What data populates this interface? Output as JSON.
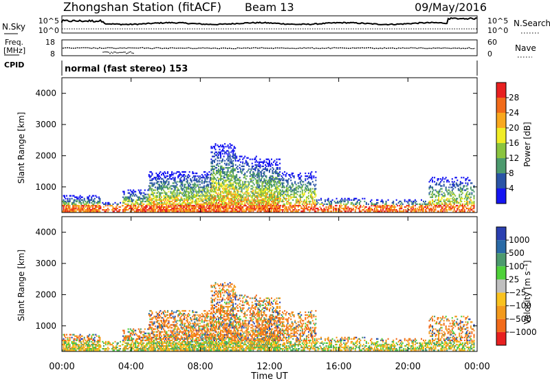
{
  "header": {
    "title": "Zhongshan Station (fitACF)",
    "beam": "Beam 13",
    "date": "09/May/2016"
  },
  "noise_panel": {
    "left_label": "N.Sky",
    "left_ticks": [
      "10^5",
      "10^0"
    ],
    "right_label": "N.Search",
    "right_ticks": [
      "10^5",
      "10^0"
    ]
  },
  "freq_panel": {
    "left_label_1": "Freq.",
    "left_label_2": "[MHz]",
    "left_ticks": [
      "18",
      "8"
    ],
    "right_label": "Nave",
    "right_ticks": [
      "60",
      "0"
    ]
  },
  "cpid": {
    "label": "CPID",
    "value": "normal (fast stereo) 153"
  },
  "xaxis": {
    "label": "Time UT",
    "ticks": [
      "00:00",
      "04:00",
      "08:00",
      "12:00",
      "16:00",
      "20:00",
      "00:00"
    ]
  },
  "chart_data": [
    {
      "type": "heatmap",
      "name": "power",
      "ylabel": "Slant Range [km]",
      "yticks": [
        1000,
        2000,
        3000,
        4000
      ],
      "ylim": [
        180,
        4500
      ],
      "xlim": [
        0,
        24
      ],
      "colorbar": {
        "label": "Power [dB]",
        "ticks": [
          "4",
          "8",
          "12",
          "16",
          "20",
          "24",
          "28"
        ],
        "colors": [
          "#1515f2",
          "#2a54a6",
          "#4c9a6e",
          "#8ac43f",
          "#f0ec26",
          "#f9a81e",
          "#f26b1a",
          "#e82020"
        ]
      }
    },
    {
      "type": "heatmap",
      "name": "velocity",
      "ylabel": "Slant Range [km]",
      "yticks": [
        1000,
        2000,
        3000,
        4000
      ],
      "ylim": [
        180,
        4500
      ],
      "xlim": [
        0,
        24
      ],
      "colorbar": {
        "label": "Velocity [m s⁻¹]",
        "ticks": [
          "1000",
          "500",
          "100",
          "25",
          "−25",
          "−100",
          "−500",
          "−1000"
        ],
        "colors": [
          "#2a3fb0",
          "#2a6aa6",
          "#4c9a6e",
          "#4fd13a",
          "#bfbfbf",
          "#f9c21e",
          "#f39a1c",
          "#f26b1a",
          "#e82020"
        ]
      }
    }
  ],
  "palette": {
    "trace": "#000000",
    "frame": "#000000"
  }
}
